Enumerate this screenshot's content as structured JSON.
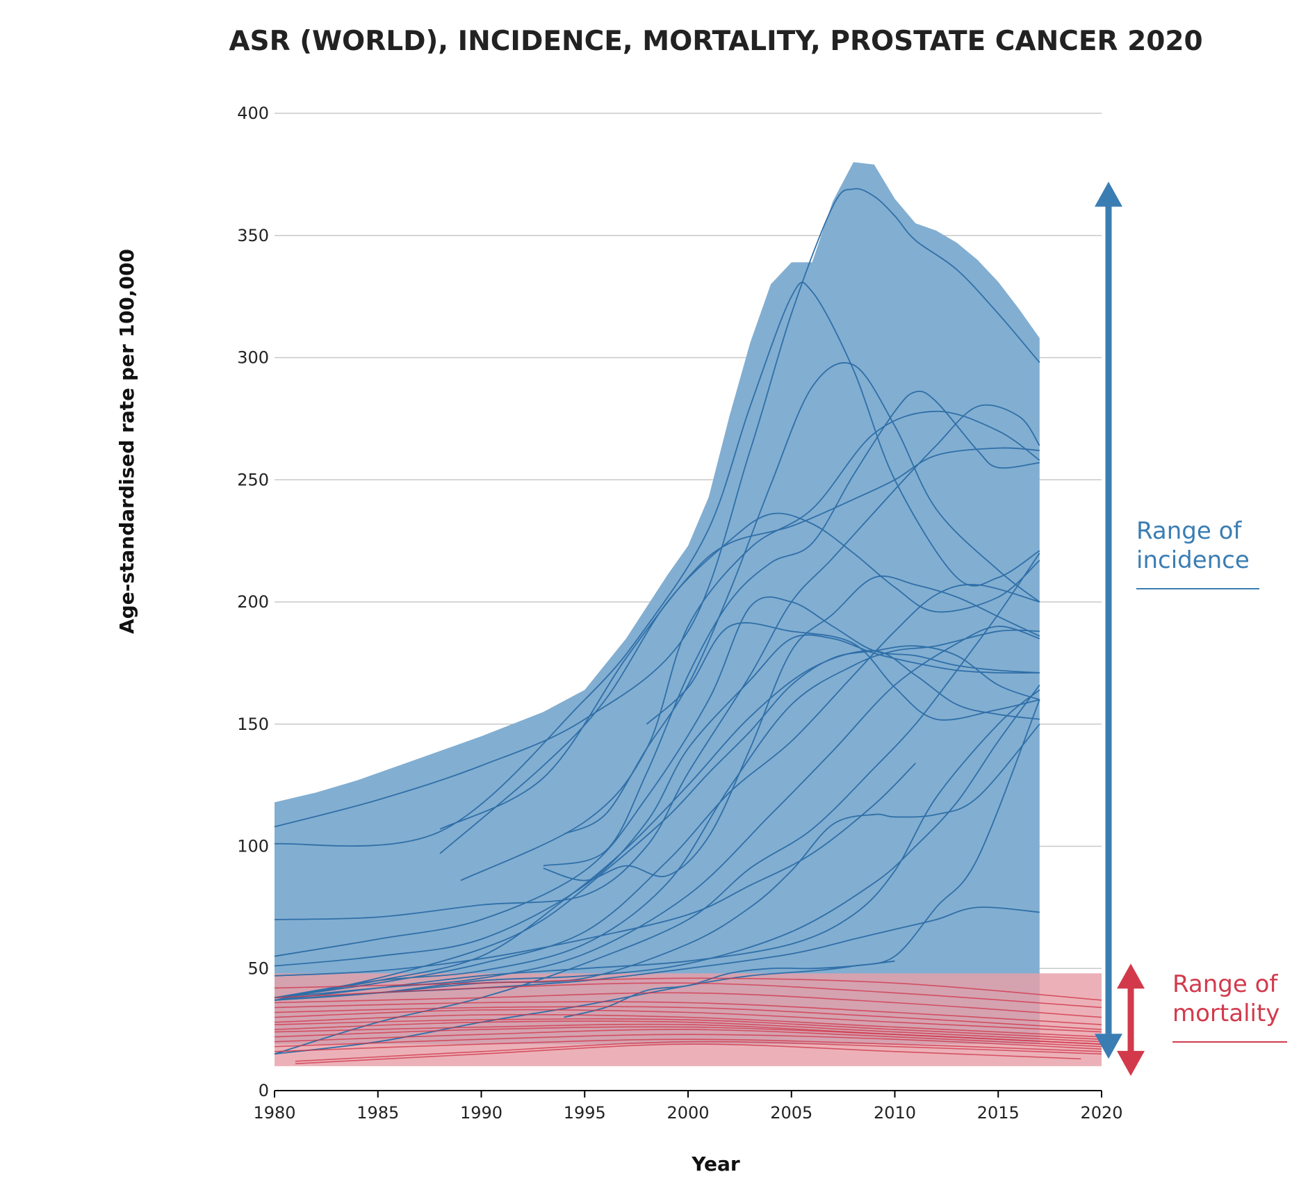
{
  "chart_data": {
    "type": "area",
    "title": "ASR (WORLD), INCIDENCE, MORTALITY, PROSTATE CANCER 2020",
    "xlabel": "Year",
    "ylabel": "Age-standardised rate per 100,000",
    "xlim": [
      1980,
      2020
    ],
    "ylim": [
      0,
      400
    ],
    "x_ticks": [
      "1980",
      "1985",
      "1990",
      "1995",
      "2000",
      "2005",
      "2010",
      "2015",
      "2020"
    ],
    "y_ticks": [
      "0",
      "50",
      "100",
      "150",
      "200",
      "250",
      "300",
      "350",
      "400"
    ],
    "grid": "horizontal",
    "colors": {
      "incidence_band": "#82aed1",
      "incidence_line": "#2f6fa8",
      "incidence_arrow": "#3a7db3",
      "mortality_band": "#e8a0a8",
      "mortality_line": "#cf3145",
      "mortality_arrow": "#d23a4c",
      "grid": "#c8c8c8"
    },
    "incidence_band": {
      "x": [
        1980,
        1982,
        1984,
        1987,
        1990,
        1993,
        1995,
        1997,
        1999,
        2000,
        2001,
        2002,
        2003,
        2004,
        2005,
        2006,
        2007,
        2008,
        2009,
        2010,
        2011,
        2012,
        2013,
        2014,
        2015,
        2016,
        2017
      ],
      "upper": [
        118,
        122,
        127,
        136,
        145,
        155,
        164,
        185,
        211,
        223,
        243,
        276,
        306,
        330,
        339,
        339,
        364,
        380,
        379,
        365,
        355,
        352,
        347,
        340,
        331,
        320,
        308
      ],
      "lower": [
        19,
        19,
        19,
        19,
        19,
        19,
        19,
        19,
        19,
        19,
        19,
        19,
        19,
        19,
        19,
        19,
        19,
        19,
        19,
        19,
        19,
        19,
        19,
        19,
        19,
        19,
        19
      ]
    },
    "mortality_band": {
      "x": [
        1980,
        2020
      ],
      "lower": 10,
      "upper": 48
    },
    "incidence_series": [
      {
        "x": [
          1980,
          1985,
          1990,
          1995,
          2000,
          2003,
          2005,
          2007,
          2008,
          2009,
          2010,
          2011,
          2013,
          2015,
          2017
        ],
        "values": [
          108,
          119,
          133,
          152,
          188,
          262,
          318,
          362,
          369,
          366,
          358,
          348,
          336,
          318,
          298
        ]
      },
      {
        "x": [
          1980,
          1988,
          1995,
          1998,
          2001,
          2003,
          2005,
          2006,
          2008,
          2010,
          2013,
          2015,
          2017
        ],
        "values": [
          101,
          106,
          160,
          190,
          230,
          280,
          325,
          327,
          295,
          250,
          210,
          210,
          221
        ]
      },
      {
        "x": [
          1994,
          1996,
          1998,
          2000,
          2002,
          2004,
          2006,
          2008,
          2010,
          2012,
          2015,
          2017
        ],
        "values": [
          105,
          113,
          140,
          166,
          204,
          248,
          288,
          297,
          272,
          238,
          213,
          200
        ]
      },
      {
        "x": [
          1993,
          1996,
          1998,
          2000,
          2002,
          2004,
          2006,
          2008,
          2010,
          2011,
          2012,
          2014,
          2015,
          2017
        ],
        "values": [
          92,
          98,
          130,
          170,
          200,
          216,
          224,
          252,
          278,
          286,
          282,
          262,
          255,
          257
        ]
      },
      {
        "x": [
          1980,
          1985,
          1990,
          1995,
          1998,
          2000,
          2003,
          2005,
          2007,
          2010,
          2012,
          2014,
          2016,
          2017
        ],
        "values": [
          70,
          71,
          76,
          80,
          100,
          130,
          170,
          200,
          218,
          246,
          264,
          280,
          276,
          264
        ]
      },
      {
        "x": [
          1988,
          1993,
          1997,
          2000,
          2002,
          2005,
          2008,
          2010,
          2012,
          2015,
          2017
        ],
        "values": [
          107,
          128,
          177,
          210,
          224,
          231,
          242,
          250,
          260,
          263,
          262
        ]
      },
      {
        "x": [
          1988,
          1993,
          1996,
          1999,
          2002,
          2004,
          2006,
          2008,
          2010,
          2012,
          2015,
          2017
        ],
        "values": [
          97,
          133,
          160,
          200,
          225,
          236,
          232,
          220,
          206,
          196,
          202,
          217
        ]
      },
      {
        "x": [
          1980,
          1985,
          1990,
          1995,
          1998,
          2001,
          2003,
          2005,
          2007,
          2009,
          2011,
          2013,
          2015,
          2017
        ],
        "values": [
          55,
          62,
          70,
          90,
          120,
          160,
          198,
          200,
          190,
          180,
          178,
          174,
          172,
          171
        ]
      },
      {
        "x": [
          1989,
          1995,
          1998,
          2000,
          2003,
          2006,
          2009,
          2012,
          2015,
          2017
        ],
        "values": [
          86,
          110,
          140,
          190,
          222,
          238,
          269,
          278,
          270,
          258
        ]
      },
      {
        "x": [
          1980,
          1985,
          1990,
          1995,
          1998,
          2000,
          2003,
          2005,
          2007,
          2009,
          2011,
          2013,
          2015,
          2017
        ],
        "values": [
          51,
          55,
          62,
          84,
          110,
          140,
          168,
          185,
          185,
          179,
          175,
          172,
          171,
          171
        ]
      },
      {
        "x": [
          1980,
          1985,
          1990,
          1993,
          1996,
          1999,
          2001,
          2003,
          2005,
          2007,
          2009,
          2011,
          2013,
          2015,
          2017
        ],
        "values": [
          37,
          46,
          58,
          70,
          90,
          112,
          130,
          147,
          166,
          177,
          180,
          182,
          178,
          166,
          160
        ]
      },
      {
        "x": [
          1998,
          2000,
          2002,
          2005,
          2008,
          2010,
          2012,
          2015,
          2017
        ],
        "values": [
          150,
          165,
          190,
          188,
          183,
          165,
          152,
          156,
          160
        ]
      },
      {
        "x": [
          1980,
          1985,
          1990,
          1994,
          1997,
          2000,
          2003,
          2006,
          2009,
          2011,
          2013,
          2015,
          2017
        ],
        "values": [
          38,
          45,
          55,
          78,
          99,
          125,
          153,
          173,
          180,
          170,
          158,
          154,
          152
        ]
      },
      {
        "x": [
          1980,
          1985,
          1990,
          1995,
          1999,
          2002,
          2005,
          2008,
          2010,
          2012,
          2015,
          2017
        ],
        "values": [
          38,
          45,
          49,
          60,
          85,
          124,
          158,
          174,
          180,
          182,
          188,
          188
        ]
      },
      {
        "x": [
          1980,
          1985,
          1990,
          1995,
          1999,
          2002,
          2005,
          2008,
          2010,
          2012,
          2014,
          2017
        ],
        "values": [
          38,
          44,
          52,
          65,
          94,
          122,
          143,
          170,
          188,
          203,
          207,
          200
        ]
      },
      {
        "x": [
          1980,
          1985,
          1990,
          1995,
          2000,
          2004,
          2007,
          2010,
          2013,
          2015,
          2017
        ],
        "values": [
          38,
          42,
          46,
          56,
          80,
          113,
          139,
          166,
          183,
          190,
          185
        ]
      },
      {
        "x": [
          1980,
          1985,
          1990,
          1995,
          2000,
          2003,
          2006,
          2009,
          2011,
          2013,
          2015,
          2017
        ],
        "values": [
          15,
          28,
          38,
          52,
          70,
          91,
          107,
          132,
          150,
          172,
          195,
          220
        ]
      },
      {
        "x": [
          1993,
          1995,
          1997,
          1999,
          2001,
          2003,
          2005,
          2007,
          2009,
          2011,
          2013,
          2015,
          2017
        ],
        "values": [
          91,
          86,
          92,
          88,
          104,
          140,
          180,
          195,
          210,
          207,
          202,
          194,
          186
        ]
      },
      {
        "x": [
          1980,
          1985,
          1990,
          1995,
          2000,
          2003,
          2006,
          2009,
          2011
        ],
        "values": [
          47,
          49,
          54,
          62,
          72,
          84,
          97,
          117,
          134
        ]
      },
      {
        "x": [
          1980,
          1985,
          1990,
          1995,
          2000,
          2005,
          2008,
          2010,
          2012,
          2015,
          2017
        ],
        "values": [
          37,
          42,
          47,
          50,
          53,
          60,
          72,
          90,
          120,
          150,
          164
        ]
      },
      {
        "x": [
          1980,
          1985,
          1990,
          1995,
          2000,
          2003,
          2005,
          2007,
          2009,
          2010,
          2012,
          2014,
          2017
        ],
        "values": [
          37,
          40,
          44,
          46,
          60,
          75,
          90,
          109,
          113,
          112,
          113,
          120,
          150
        ]
      },
      {
        "x": [
          1980,
          1985,
          1990,
          1995,
          2000,
          2003,
          2006,
          2008,
          2010,
          2012,
          2014,
          2017
        ],
        "values": [
          15,
          20,
          28,
          35,
          43,
          47,
          49,
          51,
          55,
          75,
          95,
          160
        ]
      },
      {
        "x": [
          1980,
          1985,
          1990,
          1995,
          2000,
          2005,
          2009,
          2011,
          2013,
          2015,
          2017
        ],
        "values": [
          37,
          40,
          45,
          47,
          52,
          65,
          85,
          100,
          118,
          143,
          166
        ]
      },
      {
        "x": [
          1980,
          1985,
          1990,
          1995,
          2000,
          2005,
          2008,
          2010,
          2012,
          2014,
          2017
        ],
        "values": [
          37,
          40,
          42,
          45,
          50,
          56,
          62,
          66,
          70,
          75,
          73
        ]
      },
      {
        "x": [
          1994,
          1996,
          1998,
          2000,
          2002,
          2004,
          2006,
          2008,
          2010
        ],
        "values": [
          30,
          34,
          41,
          43,
          48,
          50,
          50,
          51,
          53
        ]
      }
    ],
    "mortality_series": [
      {
        "x": [
          1980,
          1990,
          2000,
          2010,
          2020
        ],
        "values": [
          42,
          44,
          46,
          44,
          37
        ]
      },
      {
        "x": [
          1980,
          1990,
          2000,
          2010,
          2020
        ],
        "values": [
          38,
          42,
          44,
          40,
          34
        ]
      },
      {
        "x": [
          1980,
          1990,
          2000,
          2010,
          2020
        ],
        "values": [
          36,
          38,
          40,
          36,
          30
        ]
      },
      {
        "x": [
          1980,
          1990,
          2000,
          2010,
          2020
        ],
        "values": [
          34,
          36,
          36,
          32,
          27
        ]
      },
      {
        "x": [
          1980,
          1990,
          2000,
          2010,
          2020
        ],
        "values": [
          32,
          34,
          34,
          30,
          25
        ]
      },
      {
        "x": [
          1980,
          1990,
          2000,
          2010,
          2020
        ],
        "values": [
          30,
          33,
          32,
          28,
          24
        ]
      },
      {
        "x": [
          1980,
          1990,
          2000,
          2010,
          2020
        ],
        "values": [
          28,
          31,
          30,
          26,
          22
        ]
      },
      {
        "x": [
          1980,
          1990,
          2000,
          2010,
          2020
        ],
        "values": [
          27,
          29,
          29,
          25,
          21
        ]
      },
      {
        "x": [
          1980,
          1990,
          2000,
          2010,
          2020
        ],
        "values": [
          25,
          28,
          28,
          24,
          20
        ]
      },
      {
        "x": [
          1980,
          1990,
          2000,
          2010,
          2020
        ],
        "values": [
          24,
          26,
          27,
          23,
          19
        ]
      },
      {
        "x": [
          1980,
          1990,
          2000,
          2010,
          2020
        ],
        "values": [
          22,
          25,
          26,
          23,
          19
        ]
      },
      {
        "x": [
          1980,
          1990,
          2000,
          2010,
          2020
        ],
        "values": [
          20,
          23,
          25,
          22,
          18
        ]
      },
      {
        "x": [
          1980,
          1990,
          2000,
          2010,
          2020
        ],
        "values": [
          18,
          21,
          23,
          21,
          17
        ]
      },
      {
        "x": [
          1980,
          1990,
          2000,
          2010,
          2020
        ],
        "values": [
          16,
          19,
          21,
          19,
          16
        ]
      },
      {
        "x": [
          1981,
          1990,
          2000,
          2010,
          2020
        ],
        "values": [
          12,
          16,
          20,
          18,
          15
        ]
      },
      {
        "x": [
          1981,
          1990,
          2000,
          2010,
          2019
        ],
        "values": [
          11,
          15,
          19,
          16,
          13
        ]
      }
    ],
    "annotations": {
      "incidence_label": [
        "Range of",
        "incidence"
      ],
      "incidence_range": [
        13,
        372
      ],
      "mortality_label": [
        "Range of",
        "mortality"
      ],
      "mortality_range": [
        6,
        52
      ]
    }
  }
}
